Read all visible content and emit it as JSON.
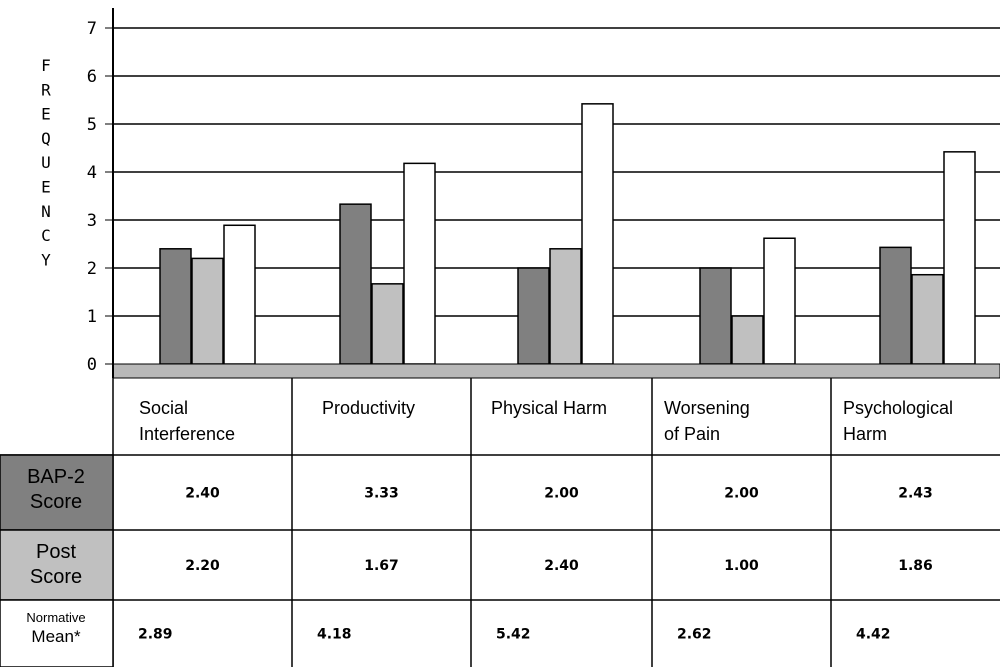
{
  "chart_data": {
    "type": "bar",
    "ylabel": "FREQUENCY",
    "ylim": [
      0,
      7
    ],
    "yticks": [
      "0",
      "1",
      "2",
      "3",
      "4",
      "5",
      "6",
      "7"
    ],
    "grid": true,
    "categories": [
      [
        "Social",
        "Interference"
      ],
      [
        "Productivity"
      ],
      [
        "Physical Harm"
      ],
      [
        "Worsening",
        "of Pain"
      ],
      [
        "Psychological",
        "Harm"
      ]
    ],
    "series": [
      {
        "name": "BAP-2 Score",
        "label_lines": [
          "BAP-2",
          "Score"
        ],
        "color": "#808080",
        "values": [
          2.4,
          3.33,
          2.0,
          2.0,
          2.43
        ],
        "labels": [
          "2.40",
          "3.33",
          "2.00",
          "2.00",
          "2.43"
        ]
      },
      {
        "name": "Post Score",
        "label_lines": [
          "Post",
          "Score"
        ],
        "color": "#c0c0c0",
        "values": [
          2.2,
          1.67,
          2.4,
          1.0,
          1.86
        ],
        "labels": [
          "2.20",
          "1.67",
          "2.40",
          "1.00",
          "1.86"
        ]
      },
      {
        "name": "Normative Mean*",
        "label_lines": [
          "Normative",
          "Mean*"
        ],
        "color": "#ffffff",
        "values": [
          2.89,
          4.18,
          5.42,
          2.62,
          4.42
        ],
        "labels": [
          "2.89",
          "4.18",
          "5.42",
          "2.62",
          "4.42"
        ]
      }
    ]
  }
}
